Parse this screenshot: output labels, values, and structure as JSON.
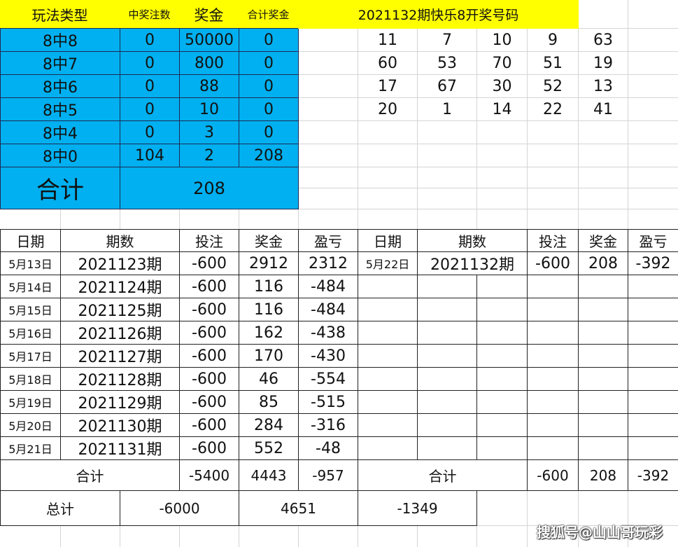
{
  "prize_table": {
    "headers": [
      "玩法类型",
      "中奖注数",
      "奖金",
      "合计奖金"
    ],
    "rows": [
      [
        "8中8",
        "0",
        "50000",
        "0"
      ],
      [
        "8中7",
        "0",
        "800",
        "0"
      ],
      [
        "8中6",
        "0",
        "88",
        "0"
      ],
      [
        "8中5",
        "0",
        "10",
        "0"
      ],
      [
        "8中4",
        "0",
        "3",
        "0"
      ],
      [
        "8中0",
        "104",
        "2",
        "208"
      ]
    ],
    "total_label": "合计",
    "total_value": "208"
  },
  "draw": {
    "title": "2021132期快乐8开奖号码",
    "numbers": [
      [
        "11",
        "7",
        "10",
        "9",
        "63"
      ],
      [
        "60",
        "53",
        "70",
        "51",
        "19"
      ],
      [
        "17",
        "67",
        "30",
        "52",
        "13"
      ],
      [
        "20",
        "1",
        "14",
        "22",
        "41"
      ]
    ]
  },
  "history_left": {
    "headers": [
      "日期",
      "期数",
      "投注",
      "奖金",
      "盈亏"
    ],
    "rows": [
      [
        "5月13日",
        "2021123期",
        "-600",
        "2912",
        "2312"
      ],
      [
        "5月14日",
        "2021124期",
        "-600",
        "116",
        "-484"
      ],
      [
        "5月15日",
        "2021125期",
        "-600",
        "116",
        "-484"
      ],
      [
        "5月16日",
        "2021126期",
        "-600",
        "162",
        "-438"
      ],
      [
        "5月17日",
        "2021127期",
        "-600",
        "170",
        "-430"
      ],
      [
        "5月18日",
        "2021128期",
        "-600",
        "46",
        "-554"
      ],
      [
        "5月19日",
        "2021129期",
        "-600",
        "85",
        "-515"
      ],
      [
        "5月20日",
        "2021130期",
        "-600",
        "284",
        "-316"
      ],
      [
        "5月21日",
        "2021131期",
        "-600",
        "552",
        "-48"
      ]
    ],
    "subtotal": [
      "合计",
      "-5400",
      "4443",
      "-957"
    ]
  },
  "history_right": {
    "headers": [
      "日期",
      "期数",
      "投注",
      "奖金",
      "盈亏"
    ],
    "rows": [
      [
        "5月22日",
        "2021132期",
        "-600",
        "208",
        "-392"
      ]
    ],
    "subtotal": [
      "合计",
      "-600",
      "208",
      "-392"
    ]
  },
  "grand_total": [
    "总计",
    "-6000",
    "4651",
    "-1349"
  ],
  "watermark": "搜狐号@山山哥玩彩",
  "colors": {
    "header_yellow": "#ffff00",
    "prize_blue": "#00b0f0"
  }
}
